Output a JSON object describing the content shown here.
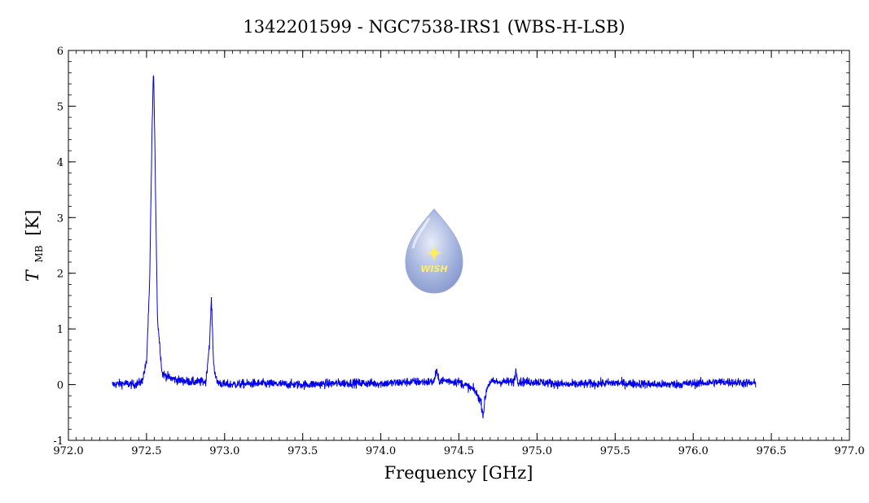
{
  "chart_data": {
    "type": "line",
    "title": "1342201599 - NGC7538-IRS1 (WBS-H-LSB)",
    "xlabel": "Frequency [GHz]",
    "ylabel_main": "T",
    "ylabel_sub": "MB",
    "ylabel_unit": "[K]",
    "xlim": [
      972.0,
      977.0
    ],
    "ylim": [
      -1,
      6
    ],
    "x_ticks": [
      "972.0",
      "972.5",
      "973.0",
      "973.5",
      "974.0",
      "974.5",
      "975.0",
      "975.5",
      "976.0",
      "976.5",
      "977.0"
    ],
    "y_ticks": [
      "-1",
      "0",
      "1",
      "2",
      "3",
      "4",
      "5",
      "6"
    ],
    "x_tick_values": [
      972.0,
      972.5,
      973.0,
      973.5,
      974.0,
      974.5,
      975.0,
      975.5,
      976.0,
      976.5,
      977.0
    ],
    "y_tick_values": [
      -1,
      0,
      1,
      2,
      3,
      4,
      5,
      6
    ],
    "series": [
      {
        "color": "#0000ee",
        "x": [
          972.28,
          972.35,
          972.42,
          972.47,
          972.5,
          972.52,
          972.535,
          972.545,
          972.555,
          972.57,
          972.6,
          972.65,
          972.7,
          972.8,
          972.88,
          972.905,
          972.915,
          972.93,
          972.95,
          973.0,
          973.2,
          973.5,
          973.8,
          974.0,
          974.2,
          974.34,
          974.355,
          974.37,
          974.5,
          974.6,
          974.64,
          974.655,
          974.665,
          974.68,
          974.7,
          974.85,
          974.865,
          974.88,
          975.0,
          975.2,
          975.5,
          975.8,
          976.0,
          976.2,
          976.4
        ],
        "y": [
          0.0,
          0.02,
          0.0,
          0.05,
          0.4,
          1.8,
          4.5,
          5.7,
          4.0,
          1.2,
          0.2,
          0.12,
          0.08,
          0.05,
          0.05,
          0.8,
          1.55,
          0.35,
          0.05,
          0.0,
          0.02,
          0.0,
          0.03,
          0.02,
          0.05,
          0.05,
          0.25,
          0.08,
          0.05,
          -0.1,
          -0.3,
          -0.55,
          -0.3,
          -0.05,
          0.05,
          0.05,
          0.25,
          0.05,
          0.05,
          0.0,
          0.03,
          0.0,
          0.02,
          0.05,
          0.02
        ],
        "noise": 0.08
      }
    ]
  },
  "logo": {
    "text": "WISH",
    "icon": "wish-water-drop-logo-icon"
  }
}
